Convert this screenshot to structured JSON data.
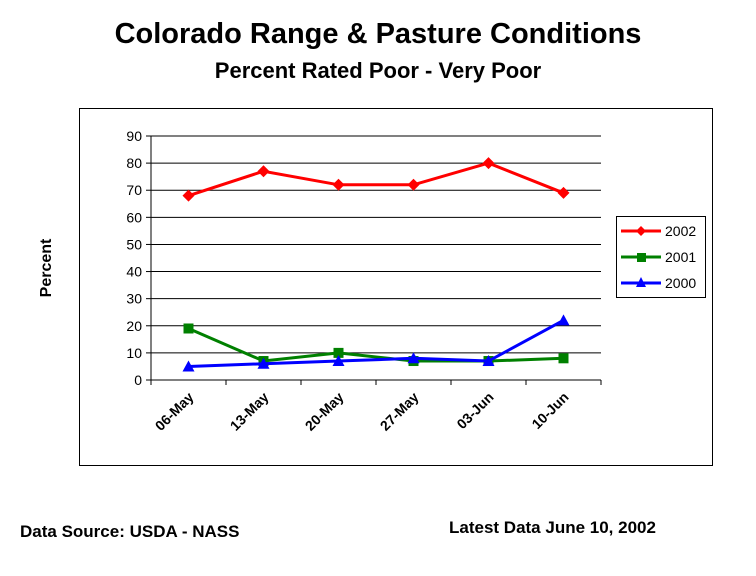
{
  "chart_data": {
    "type": "line",
    "title": "Colorado Range & Pasture Conditions",
    "subtitle": "Percent Rated Poor -  Very Poor",
    "ylabel": "Percent",
    "xlabel": "",
    "categories": [
      "06-May",
      "13-May",
      "20-May",
      "27-May",
      "03-Jun",
      "10-Jun"
    ],
    "ylim": [
      0,
      90
    ],
    "yticks": [
      0,
      10,
      20,
      30,
      40,
      50,
      60,
      70,
      80,
      90
    ],
    "grid": "horizontal",
    "legend": "right",
    "series": [
      {
        "name": "2002",
        "values": [
          68,
          77,
          72,
          72,
          80,
          69
        ],
        "color": "#ff0000",
        "marker": "diamond"
      },
      {
        "name": "2001",
        "values": [
          19,
          7,
          10,
          7,
          7,
          8
        ],
        "color": "#008000",
        "marker": "square"
      },
      {
        "name": "2000",
        "values": [
          5,
          6,
          7,
          8,
          7,
          22
        ],
        "color": "#0000ff",
        "marker": "triangle"
      }
    ]
  },
  "footer": {
    "source": "Data Source: USDA - NASS",
    "latest": "Latest Data June 10, 2002"
  }
}
